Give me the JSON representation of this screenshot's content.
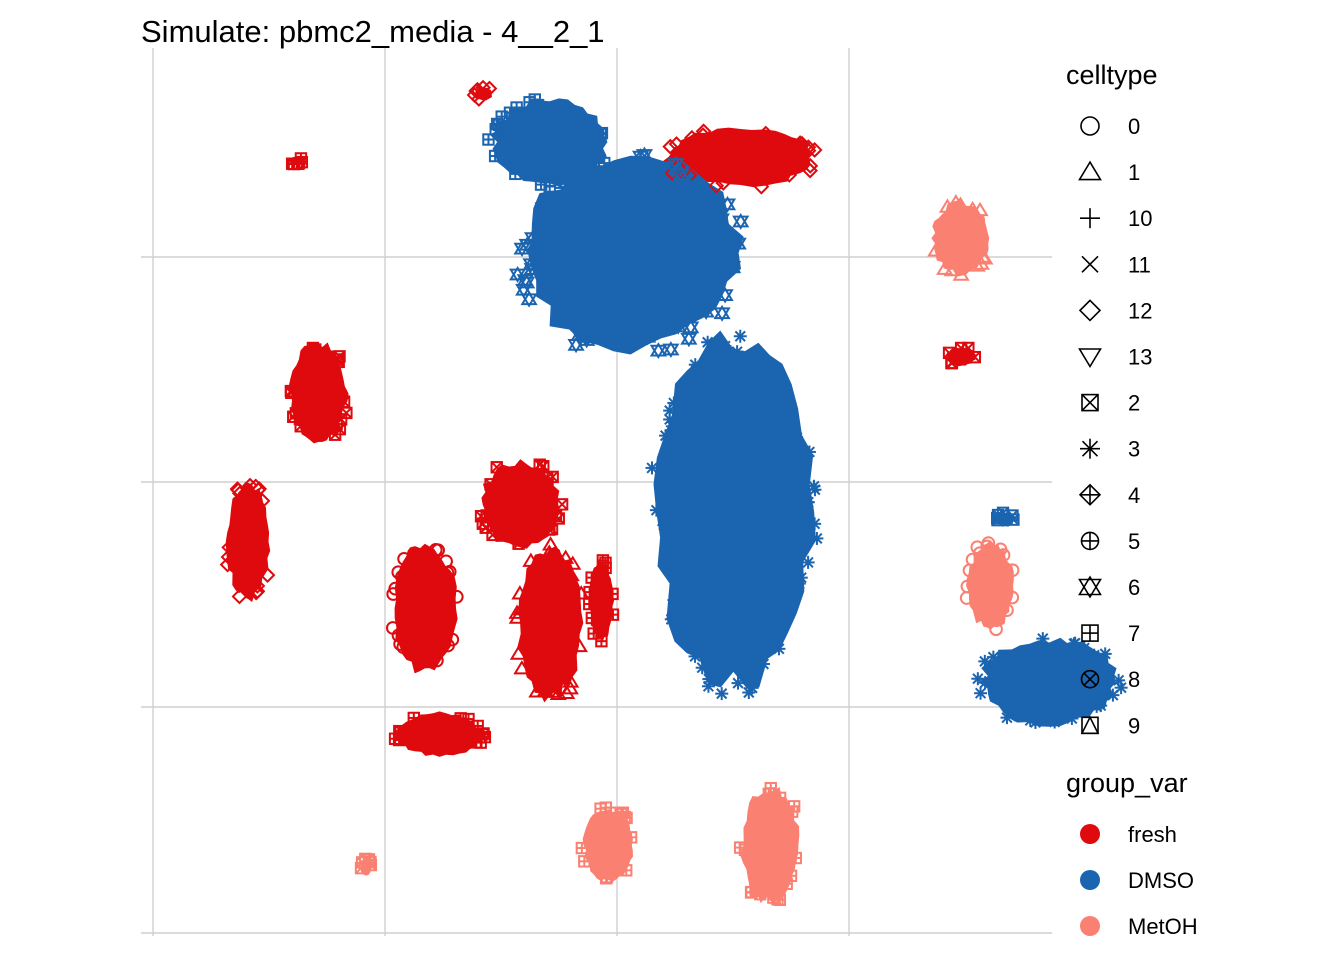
{
  "chart_data": {
    "type": "scatter",
    "title": "Simulate: pbmc2_media - 4__2_1",
    "xlabel": "",
    "ylabel": "",
    "xlim": [
      0,
      10
    ],
    "ylim": [
      0,
      10
    ],
    "grid": true,
    "legend_placement": "right",
    "legends": {
      "shape": {
        "title": "celltype",
        "entries": [
          {
            "label": "0",
            "shape": "circle"
          },
          {
            "label": "1",
            "shape": "triangle-up"
          },
          {
            "label": "10",
            "shape": "plus"
          },
          {
            "label": "11",
            "shape": "cross"
          },
          {
            "label": "12",
            "shape": "diamond"
          },
          {
            "label": "13",
            "shape": "triangle-down"
          },
          {
            "label": "2",
            "shape": "square-cross"
          },
          {
            "label": "3",
            "shape": "asterisk"
          },
          {
            "label": "4",
            "shape": "diamond-plus"
          },
          {
            "label": "5",
            "shape": "circle-plus"
          },
          {
            "label": "6",
            "shape": "star-of-david"
          },
          {
            "label": "7",
            "shape": "square-plus"
          },
          {
            "label": "8",
            "shape": "circle-cross"
          },
          {
            "label": "9",
            "shape": "square-triangle"
          }
        ]
      },
      "color": {
        "title": "group_var",
        "entries": [
          {
            "label": "fresh",
            "color": "#DE0A0E"
          },
          {
            "label": "DMSO",
            "color": "#1B64AF"
          },
          {
            "label": "MetOH",
            "color": "#FA8072"
          }
        ]
      }
    },
    "clusters": [
      {
        "group": "fresh",
        "shape": "circle",
        "cx": 3.7,
        "cy": 7.3,
        "rx": 0.44,
        "ry": 0.9
      },
      {
        "group": "fresh",
        "shape": "triangle-up",
        "cx": 5.4,
        "cy": 7.5,
        "rx": 0.45,
        "ry": 1.05
      },
      {
        "group": "fresh",
        "shape": "diamond",
        "cx": 1.3,
        "cy": 6.4,
        "rx": 0.3,
        "ry": 0.8
      },
      {
        "group": "fresh",
        "shape": "square-cross",
        "cx": 2.25,
        "cy": 4.4,
        "rx": 0.4,
        "ry": 0.7
      },
      {
        "group": "fresh",
        "shape": "square-plus",
        "cx": 6.1,
        "cy": 7.2,
        "rx": 0.17,
        "ry": 0.55
      },
      {
        "group": "fresh",
        "shape": "square-cross",
        "cx": 5.0,
        "cy": 5.9,
        "rx": 0.55,
        "ry": 0.6
      },
      {
        "group": "fresh",
        "shape": "diamond",
        "cx": 8.0,
        "cy": 1.2,
        "rx": 1.05,
        "ry": 0.4
      },
      {
        "group": "fresh",
        "shape": "square-plus",
        "cx": 3.9,
        "cy": 9.0,
        "rx": 0.6,
        "ry": 0.3
      },
      {
        "group": "fresh",
        "shape": "square-cross",
        "cx": 11.0,
        "cy": 3.9,
        "rx": 0.2,
        "ry": 0.13
      },
      {
        "group": "fresh",
        "shape": "diamond",
        "cx": 4.5,
        "cy": 0.35,
        "rx": 0.12,
        "ry": 0.09
      },
      {
        "group": "fresh",
        "shape": "square-plus",
        "cx": 1.95,
        "cy": 1.25,
        "rx": 0.1,
        "ry": 0.05
      },
      {
        "group": "DMSO",
        "shape": "asterisk",
        "cx": 7.9,
        "cy": 6.0,
        "rx": 1.1,
        "ry": 2.4
      },
      {
        "group": "DMSO",
        "shape": "star-of-david",
        "cx": 6.5,
        "cy": 2.5,
        "rx": 1.5,
        "ry": 1.35
      },
      {
        "group": "DMSO",
        "shape": "square-plus",
        "cx": 5.4,
        "cy": 1.0,
        "rx": 0.8,
        "ry": 0.6
      },
      {
        "group": "DMSO",
        "shape": "asterisk",
        "cx": 12.2,
        "cy": 8.3,
        "rx": 0.95,
        "ry": 0.6
      },
      {
        "group": "DMSO",
        "shape": "square-cross",
        "cx": 11.6,
        "cy": 6.1,
        "rx": 0.12,
        "ry": 0.1
      },
      {
        "group": "MetOH",
        "shape": "circle",
        "cx": 11.4,
        "cy": 7.0,
        "rx": 0.32,
        "ry": 0.6
      },
      {
        "group": "MetOH",
        "shape": "square-plus",
        "cx": 6.2,
        "cy": 10.5,
        "rx": 0.35,
        "ry": 0.5
      },
      {
        "group": "MetOH",
        "shape": "square-plus",
        "cx": 8.4,
        "cy": 10.5,
        "rx": 0.4,
        "ry": 0.8
      },
      {
        "group": "MetOH",
        "shape": "triangle-up",
        "cx": 11.0,
        "cy": 2.3,
        "rx": 0.4,
        "ry": 0.5
      },
      {
        "group": "MetOH",
        "shape": "square-cross",
        "cx": 2.9,
        "cy": 10.8,
        "rx": 0.08,
        "ry": 0.12
      }
    ]
  }
}
